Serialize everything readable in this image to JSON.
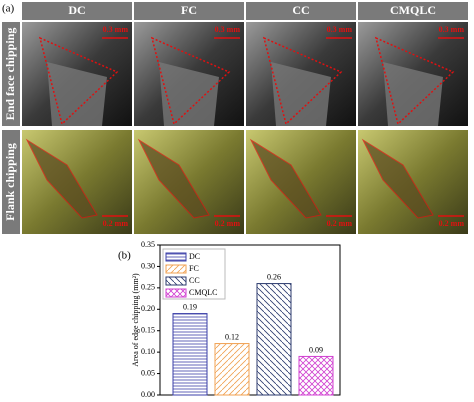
{
  "figure": {
    "panel_a": "(a)",
    "panel_b": "(b)",
    "columns": [
      "DC",
      "FC",
      "CC",
      "CMQLC"
    ],
    "rows": [
      "End face chipping",
      "Flank chipping"
    ],
    "scale_bars": [
      "0.3 mm",
      "0.2 mm"
    ]
  },
  "chart_data": {
    "type": "bar",
    "y_label": "Area of edge chipping (mm²)",
    "series": [
      {
        "name": "DC",
        "color": "#3b3fa8",
        "hatch": "horizontal",
        "values": [
          0.19
        ]
      },
      {
        "name": "FC",
        "color": "#f0a050",
        "hatch": "diagonal",
        "values": [
          0.12
        ]
      },
      {
        "name": "CC",
        "color": "#2b3a6e",
        "hatch": "backdiagonal",
        "values": [
          0.26
        ]
      },
      {
        "name": "CMQLC",
        "color": "#d040d0",
        "hatch": "cross",
        "values": [
          0.09
        ]
      }
    ],
    "ylim": [
      0,
      0.35
    ],
    "yticks": [
      {
        "value": 0,
        "label": "0.00"
      },
      {
        "value": 0.05,
        "label": "0.05"
      },
      {
        "value": 0.1,
        "label": "0.10"
      },
      {
        "value": 0.15,
        "label": "0.15"
      },
      {
        "value": 0.2,
        "label": "0.20"
      },
      {
        "value": 0.25,
        "label": "0.25"
      },
      {
        "value": 0.3,
        "label": "0.30"
      },
      {
        "value": 0.35,
        "label": "0.35"
      }
    ],
    "legend": "upper left"
  }
}
